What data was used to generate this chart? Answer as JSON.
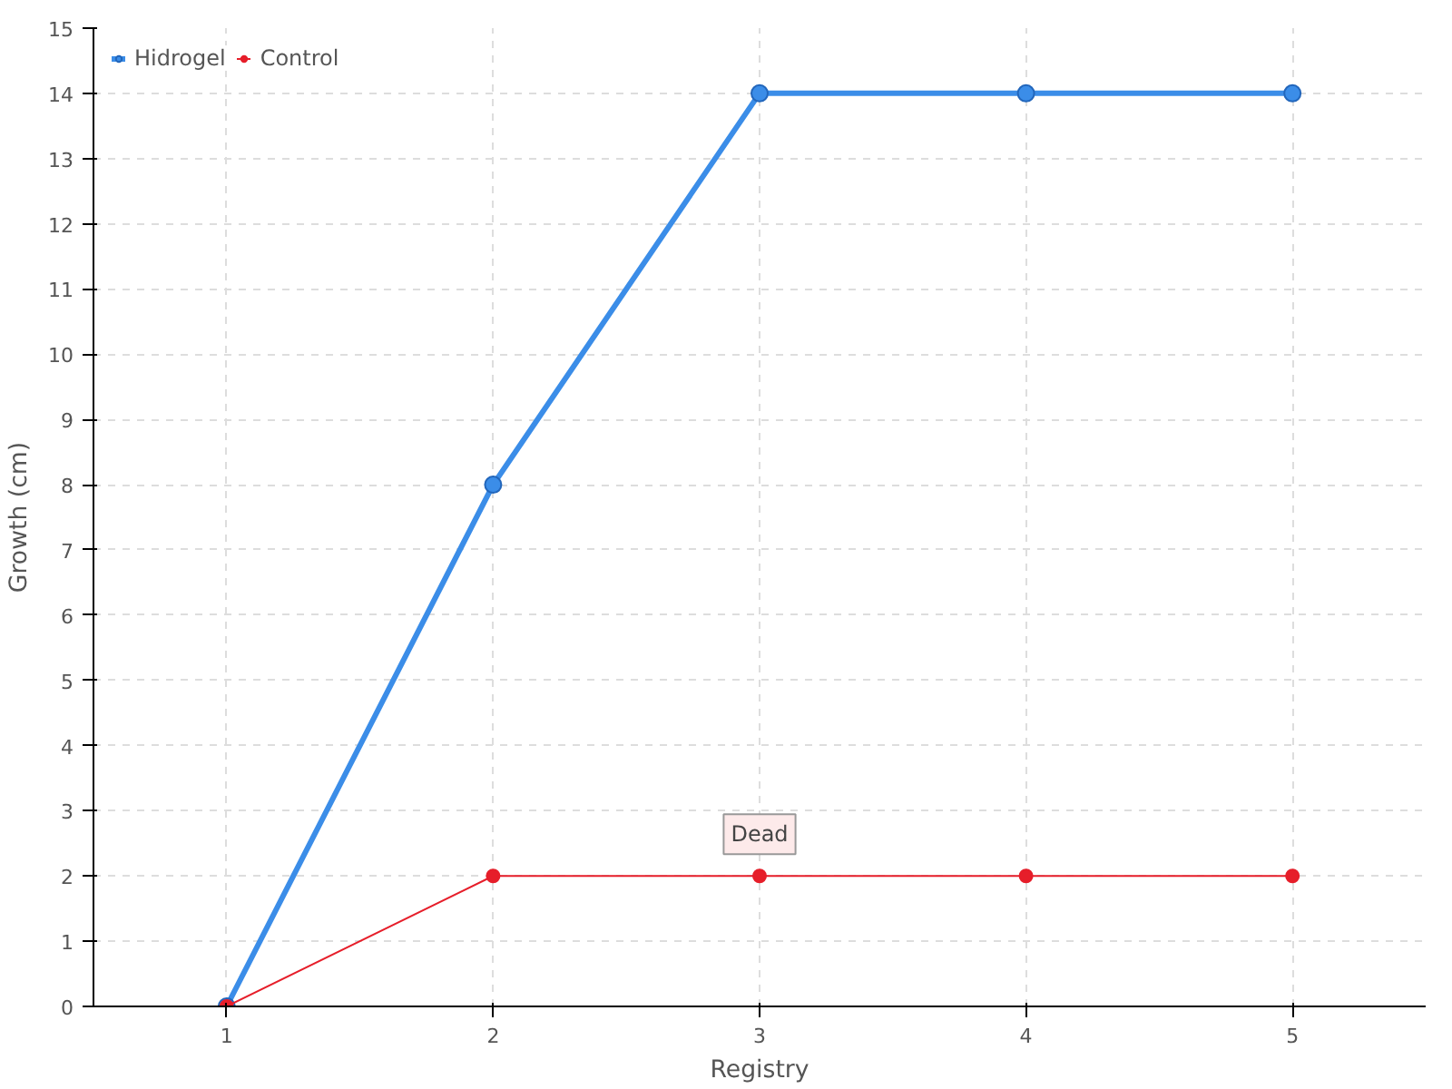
{
  "chart_data": {
    "type": "line",
    "xlabel": "Registry",
    "ylabel": "Growth (cm)",
    "x": [
      1,
      2,
      3,
      4,
      5
    ],
    "series": [
      {
        "name": "Hidrogel",
        "color": "#3b8de8",
        "values": [
          0,
          8,
          14,
          14,
          14
        ]
      },
      {
        "name": "Control",
        "color": "#e61e2a",
        "values": [
          0,
          2,
          2,
          2,
          2
        ]
      }
    ],
    "xlim": [
      0.5,
      5.5
    ],
    "xticks": [
      1,
      2,
      3,
      4,
      5
    ],
    "ylim": [
      0,
      15
    ],
    "yticks": [
      0,
      1,
      2,
      3,
      4,
      5,
      6,
      7,
      8,
      9,
      10,
      11,
      12,
      13,
      14,
      15
    ],
    "annotations": [
      {
        "text": "Dead",
        "x": 3,
        "y": 2
      }
    ],
    "grid": true,
    "legend": "top left",
    "marker": "circle",
    "line_style": "solid"
  }
}
